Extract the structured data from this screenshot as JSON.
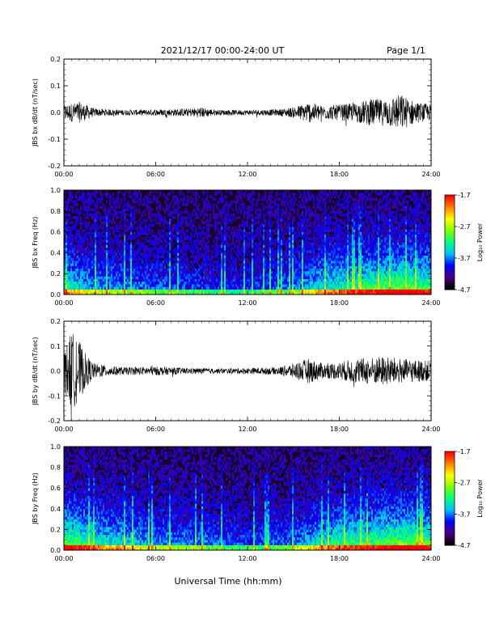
{
  "header": {
    "date_range": "2021/12/17  00:00-24:00 UT",
    "page": "Page 1/1"
  },
  "x_axis_title": "Universal Time (hh:mm)",
  "colors": {
    "trace": "#000000",
    "colorbar_stops": [
      "#000000",
      "#4b0082",
      "#0000ff",
      "#00bfff",
      "#00ff7f",
      "#7fff00",
      "#ffff00",
      "#ff8000",
      "#ff0000"
    ]
  },
  "chart_data": [
    {
      "type": "line",
      "ylabel": "JBS bx dB/dt (nT/sec)",
      "ylim": [
        -0.2,
        0.2
      ],
      "yticks": [
        "0.2",
        "0.1",
        "0.0",
        "-0.1",
        "-0.2"
      ],
      "xticks": [
        "00:00",
        "06:00",
        "12:00",
        "18:00",
        "24:00"
      ],
      "xlim_hours": [
        0,
        24
      ],
      "envelope": {
        "hours": [
          0,
          1,
          2,
          4,
          6,
          8,
          9,
          10,
          12,
          14,
          15,
          16,
          17,
          18,
          19,
          20,
          21,
          22,
          23,
          24
        ],
        "amplitude": [
          0.03,
          0.04,
          0.015,
          0.01,
          0.012,
          0.015,
          0.02,
          0.01,
          0.01,
          0.012,
          0.02,
          0.04,
          0.025,
          0.03,
          0.035,
          0.05,
          0.05,
          0.07,
          0.04,
          0.03
        ]
      }
    },
    {
      "type": "heatmap",
      "ylabel": "JBS bx Freq (Hz)",
      "ylim": [
        0,
        1.0
      ],
      "yticks": [
        "1.0",
        "0.8",
        "0.6",
        "0.4",
        "0.2",
        "0.0"
      ],
      "xticks": [
        "00:00",
        "06:00",
        "12:00",
        "18:00",
        "24:00"
      ],
      "xlim_hours": [
        0,
        24
      ],
      "colorbar": {
        "label": "Log₁₀ Power",
        "ticks": [
          "-1.7",
          "-2.7",
          "-3.7",
          "-4.7"
        ],
        "range": [
          -4.7,
          -1.7
        ]
      },
      "activity": {
        "hours": [
          0,
          2,
          6,
          12,
          15,
          17,
          18,
          20,
          22,
          24
        ],
        "level": [
          0.6,
          0.4,
          0.3,
          0.2,
          0.35,
          0.55,
          0.6,
          0.7,
          0.8,
          0.7
        ]
      }
    },
    {
      "type": "line",
      "ylabel": "JBS by dB/dt (nT/sec)",
      "ylim": [
        -0.2,
        0.2
      ],
      "yticks": [
        "0.2",
        "0.1",
        "0.0",
        "-0.1",
        "-0.2"
      ],
      "xticks": [
        "00:00",
        "06:00",
        "12:00",
        "18:00",
        "24:00"
      ],
      "xlim_hours": [
        0,
        24
      ],
      "envelope": {
        "hours": [
          0,
          0.5,
          1,
          1.5,
          2,
          3,
          4,
          6,
          8,
          10,
          12,
          14,
          15,
          16,
          17,
          18,
          19,
          20,
          21,
          22,
          23,
          24
        ],
        "amplitude": [
          0.08,
          0.16,
          0.12,
          0.06,
          0.03,
          0.02,
          0.015,
          0.018,
          0.012,
          0.01,
          0.012,
          0.015,
          0.03,
          0.05,
          0.03,
          0.035,
          0.05,
          0.055,
          0.06,
          0.05,
          0.045,
          0.04
        ]
      }
    },
    {
      "type": "heatmap",
      "ylabel": "JBS by Freq (Hz)",
      "ylim": [
        0,
        1.0
      ],
      "yticks": [
        "1.0",
        "0.8",
        "0.6",
        "0.4",
        "0.2",
        "0.0"
      ],
      "xticks": [
        "00:00",
        "06:00",
        "12:00",
        "18:00",
        "24:00"
      ],
      "xlim_hours": [
        0,
        24
      ],
      "colorbar": {
        "label": "Log₁₀ Power",
        "ticks": [
          "-1.7",
          "-2.7",
          "-3.7",
          "-4.7"
        ],
        "range": [
          -4.7,
          -1.7
        ]
      },
      "activity": {
        "hours": [
          0,
          2,
          6,
          12,
          15,
          17,
          18,
          20,
          22,
          24
        ],
        "level": [
          0.8,
          0.6,
          0.4,
          0.25,
          0.35,
          0.55,
          0.65,
          0.7,
          0.8,
          0.75
        ]
      }
    }
  ]
}
